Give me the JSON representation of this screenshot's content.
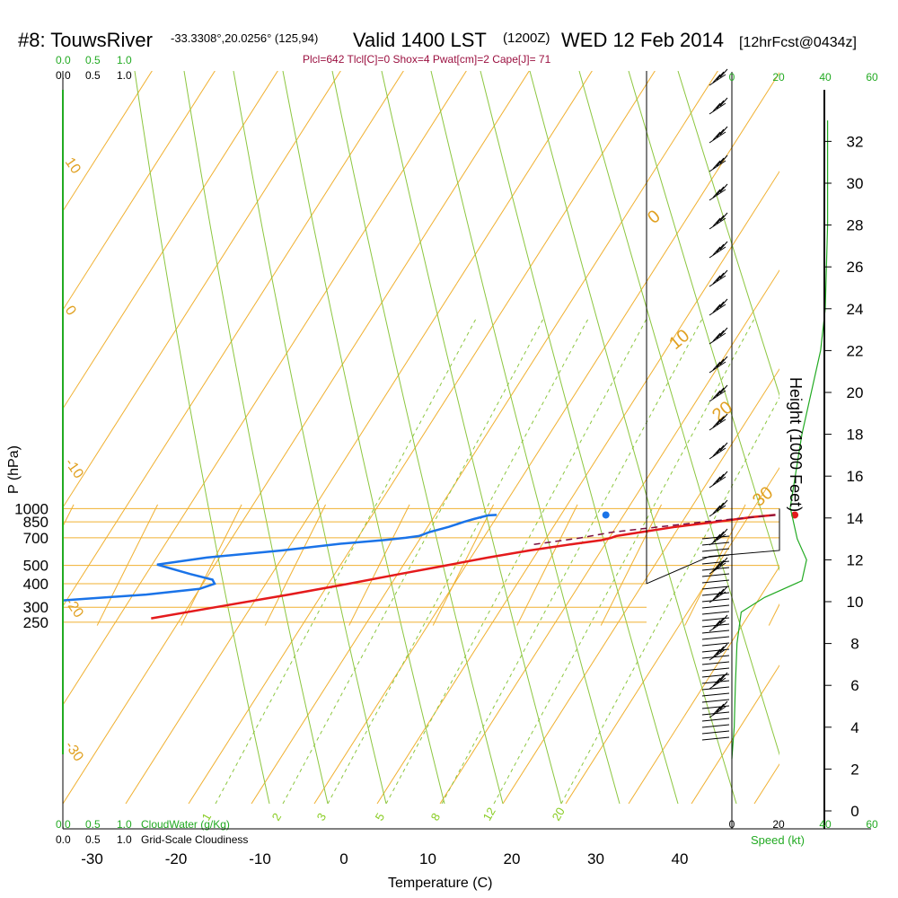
{
  "header": {
    "station": "#8: TouwsRiver",
    "coords": "-33.3308°,20.0256° (125,94)",
    "valid": "Valid 1400 LST",
    "utc": "(1200Z)",
    "date": "WED 12 Feb 2014",
    "forecast": "[12hrFcst@0434z]",
    "params": "Plcl=642 Tlcl[C]=0 Shox=4 Pwat[cm]=2 Cape[J]= 71"
  },
  "colors": {
    "temperature": "#e41a1c",
    "dewpoint": "#1a73e8",
    "isotherm": "#f0b030",
    "dry_adiabat": "#f0b030",
    "moist_adiabat": "#8cc63f",
    "mixing_ratio": "#8cc63f",
    "cloud": "#22aa22",
    "wind": "#000000"
  },
  "chart_data": {
    "type": "line",
    "xlabel": "Temperature (C)",
    "ylabel": "P (hPa)",
    "right_label": "Height (1000 Feet)",
    "x_ticks": [
      "-30",
      "-20",
      "-10",
      "0",
      "10",
      "20",
      "30",
      "40"
    ],
    "p_ticks": [
      "250",
      "300",
      "400",
      "500",
      "700",
      "850",
      "1000"
    ],
    "height_ticks": [
      "0",
      "2",
      "4",
      "6",
      "8",
      "10",
      "12",
      "14",
      "16",
      "18",
      "20",
      "22",
      "24",
      "26",
      "28",
      "30",
      "32"
    ],
    "speed_ticks": [
      "0",
      "20",
      "40",
      "60"
    ],
    "speed_ticks_bottom": [
      "0",
      "20"
    ],
    "speed_ticks_bottom_green": [
      "40",
      "60"
    ],
    "speed_label": "Speed (kt)",
    "cloud_ticks_green": [
      "0.0",
      "0.5",
      "1.0"
    ],
    "cloud_ticks_black": [
      "0.0",
      "0.5",
      "1.0"
    ],
    "cloudwater_label": "CloudWater (g/Kg)",
    "cloudiness_label": "Grid-Scale Cloudiness",
    "dry_adiabat_labels": [
      "10",
      "0",
      "-10",
      "-20",
      "-30"
    ],
    "moist_adiabat_labels": [
      "0",
      "10",
      "20",
      "30"
    ],
    "mixing_ratio_labels": [
      "1",
      "2",
      "3",
      "5",
      "8",
      "12",
      "20"
    ],
    "p_range_hpa": [
      250,
      1000
    ],
    "t_range_c": [
      -30,
      45
    ],
    "series": [
      {
        "name": "",
        "key": "temperature",
        "points": [
          {
            "p": 925,
            "t": 34.2
          },
          {
            "p": 900,
            "t": 31.5
          },
          {
            "p": 850,
            "t": 27.5
          },
          {
            "p": 800,
            "t": 23.0
          },
          {
            "p": 750,
            "t": 19.2
          },
          {
            "p": 715,
            "t": 16.5
          },
          {
            "p": 700,
            "t": 16.0
          },
          {
            "p": 680,
            "t": 15.0
          },
          {
            "p": 650,
            "t": 12.0
          },
          {
            "p": 600,
            "t": 7.0
          },
          {
            "p": 550,
            "t": 2.5
          },
          {
            "p": 500,
            "t": -2.0
          },
          {
            "p": 450,
            "t": -7.0
          },
          {
            "p": 400,
            "t": -12.5
          },
          {
            "p": 350,
            "t": -19.0
          },
          {
            "p": 300,
            "t": -27.0
          },
          {
            "p": 262,
            "t": -34.0
          }
        ]
      },
      {
        "name": "",
        "key": "dewpoint",
        "points": [
          {
            "p": 925,
            "t": 1.0
          },
          {
            "p": 920,
            "t": 0.0
          },
          {
            "p": 880,
            "t": -1.5
          },
          {
            "p": 850,
            "t": -2.5
          },
          {
            "p": 800,
            "t": -4.0
          },
          {
            "p": 750,
            "t": -6.0
          },
          {
            "p": 715,
            "t": -7.0
          },
          {
            "p": 700,
            "t": -8.5
          },
          {
            "p": 680,
            "t": -11.0
          },
          {
            "p": 650,
            "t": -16.0
          },
          {
            "p": 600,
            "t": -22.5
          },
          {
            "p": 550,
            "t": -31.0
          },
          {
            "p": 505,
            "t": -36.5
          },
          {
            "p": 450,
            "t": -32.0
          },
          {
            "p": 420,
            "t": -29.0
          },
          {
            "p": 400,
            "t": -28.5
          },
          {
            "p": 375,
            "t": -30.0
          },
          {
            "p": 350,
            "t": -36.0
          },
          {
            "p": 330,
            "t": -44.0
          },
          {
            "p": 300,
            "t": -56.0
          },
          {
            "p": 285,
            "t": -57.0
          },
          {
            "p": 262,
            "t": -51.0
          }
        ]
      },
      {
        "name": "",
        "key": "parcel",
        "points": [
          {
            "p": 925,
            "t": 34.2
          },
          {
            "p": 850,
            "t": 26.0
          },
          {
            "p": 750,
            "t": 15.8
          },
          {
            "p": 700,
            "t": 12.4
          },
          {
            "p": 642,
            "t": 6.8
          }
        ]
      }
    ],
    "surface_points": [
      {
        "key": "temperature",
        "p": 925,
        "t": 36.5
      },
      {
        "key": "dewpoint",
        "p": 925,
        "t": 14.0
      }
    ],
    "wind_speed_profile_kt": [
      {
        "h": 2.5,
        "s": 0
      },
      {
        "h": 4,
        "s": 1
      },
      {
        "h": 6,
        "s": 1.5
      },
      {
        "h": 8,
        "s": 2.2
      },
      {
        "h": 9.5,
        "s": 4
      },
      {
        "h": 10.2,
        "s": 14
      },
      {
        "h": 11,
        "s": 30
      },
      {
        "h": 12,
        "s": 32
      },
      {
        "h": 13,
        "s": 28
      },
      {
        "h": 14.5,
        "s": 25
      },
      {
        "h": 18,
        "s": 30
      },
      {
        "h": 20,
        "s": 34
      },
      {
        "h": 22,
        "s": 38
      },
      {
        "h": 24,
        "s": 40
      },
      {
        "h": 28,
        "s": 41
      },
      {
        "h": 33,
        "s": 41
      }
    ],
    "tropopause_line_t_c": [
      {
        "p": 250,
        "t": 45
      },
      {
        "p": 400,
        "t": 45
      },
      {
        "p": 500,
        "t": 45
      },
      {
        "p": 650,
        "t": 45
      }
    ]
  }
}
